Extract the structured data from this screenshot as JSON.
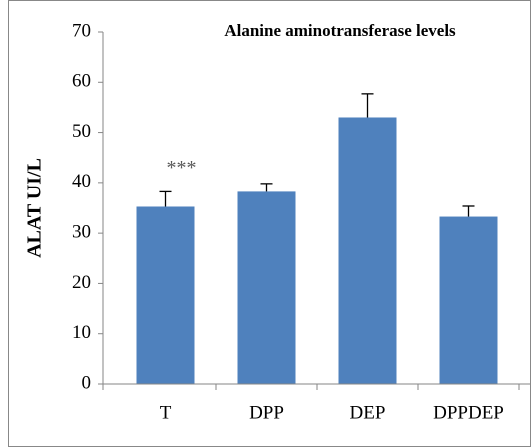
{
  "chart_data": {
    "type": "bar",
    "title": "Alanine aminotransferase levels",
    "ylabel": "ALAT UI/L",
    "categories": [
      "T",
      "DPP",
      "DEP",
      "DPPDEP"
    ],
    "values": [
      35.3,
      38.3,
      53,
      33.3
    ],
    "errors": [
      3,
      1.5,
      4.7,
      2.1
    ],
    "color": "#4f81bd",
    "annotations": [
      {
        "text": "***",
        "category": 0
      }
    ],
    "ylim": [
      0,
      70
    ],
    "yticks": [
      0,
      10,
      20,
      30,
      40,
      50,
      60,
      70
    ],
    "grid": false
  }
}
